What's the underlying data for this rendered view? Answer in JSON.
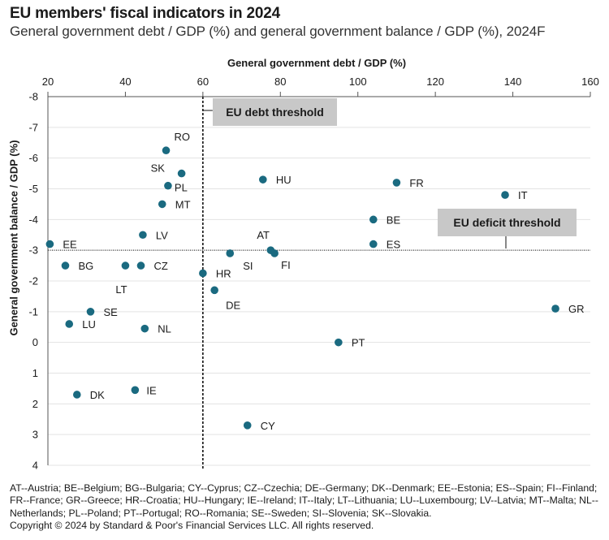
{
  "header": {
    "title": "EU members' fiscal indicators in 2024",
    "subtitle": "General government debt / GDP (%) and general government balance / GDP (%), 2024F"
  },
  "footer": {
    "legend_text": "AT--Austria; BE--Belgium; BG--Bulgaria; CY--Cyprus; CZ--Czechia; DE--Germany; DK--Denmark; EE--Estonia; ES--Spain; FI--Finland; FR--France; GR--Greece; HR--Croatia; HU--Hungary; IE--Ireland; IT--Italy; LT--Lithuania; LU--Luxembourg; LV--Latvia; MT--Malta; NL--Netherlands; PL--Poland; PT--Portugal; RO--Romania; SE--Sweden; SI--Slovenia; SK--Slovakia.",
    "copyright": "Copyright © 2024 by Standard & Poor's Financial Services LLC. All rights reserved."
  },
  "colors": {
    "point": "#1a6a80",
    "threshold_box": "#c8c8c8",
    "grid": "#e3e3e3"
  },
  "chart_data": {
    "type": "scatter",
    "xlabel": "General government debt / GDP (%)",
    "ylabel": "General government balance / GDP (%)",
    "xlim": [
      20,
      160
    ],
    "ylim": [
      -8,
      4
    ],
    "y_axis_inverted": true,
    "x_axis_position": "top",
    "x_ticks": [
      20,
      40,
      60,
      80,
      100,
      120,
      140,
      160
    ],
    "y_ticks": [
      -8,
      -7,
      -6,
      -5,
      -4,
      -3,
      -2,
      -1,
      0,
      1,
      2,
      3,
      4
    ],
    "grid": true,
    "thresholds": {
      "debt": {
        "value": 60,
        "label": "EU debt threshold"
      },
      "deficit": {
        "value": -3,
        "label": "EU deficit threshold"
      }
    },
    "points": [
      {
        "label": "RO",
        "x": 50.5,
        "y": -6.25
      },
      {
        "label": "SK",
        "x": 54.5,
        "y": -5.5
      },
      {
        "label": "PL",
        "x": 51,
        "y": -5.1
      },
      {
        "label": "MT",
        "x": 49.5,
        "y": -4.5
      },
      {
        "label": "HU",
        "x": 75.5,
        "y": -5.3
      },
      {
        "label": "FR",
        "x": 110,
        "y": -5.2
      },
      {
        "label": "IT",
        "x": 138,
        "y": -4.8
      },
      {
        "label": "BE",
        "x": 104,
        "y": -4.0
      },
      {
        "label": "ES",
        "x": 104,
        "y": -3.2
      },
      {
        "label": "EE",
        "x": 20.5,
        "y": -3.2
      },
      {
        "label": "LV",
        "x": 44.5,
        "y": -3.5
      },
      {
        "label": "AT",
        "x": 77.5,
        "y": -3.0
      },
      {
        "label": "FI",
        "x": 78.5,
        "y": -2.9
      },
      {
        "label": "SI",
        "x": 67,
        "y": -2.9
      },
      {
        "label": "BG",
        "x": 24.5,
        "y": -2.5
      },
      {
        "label": "LT",
        "x": 40,
        "y": -2.5
      },
      {
        "label": "CZ",
        "x": 44,
        "y": -2.5
      },
      {
        "label": "HR",
        "x": 60,
        "y": -2.25
      },
      {
        "label": "DE",
        "x": 63,
        "y": -1.7
      },
      {
        "label": "SE",
        "x": 31,
        "y": -1.0
      },
      {
        "label": "LU",
        "x": 25.5,
        "y": -0.6
      },
      {
        "label": "NL",
        "x": 45,
        "y": -0.45
      },
      {
        "label": "PT",
        "x": 95,
        "y": 0.0
      },
      {
        "label": "GR",
        "x": 151,
        "y": -1.1
      },
      {
        "label": "IE",
        "x": 42.5,
        "y": 1.55
      },
      {
        "label": "DK",
        "x": 27.5,
        "y": 1.7
      },
      {
        "label": "CY",
        "x": 71.5,
        "y": 2.7
      }
    ]
  }
}
